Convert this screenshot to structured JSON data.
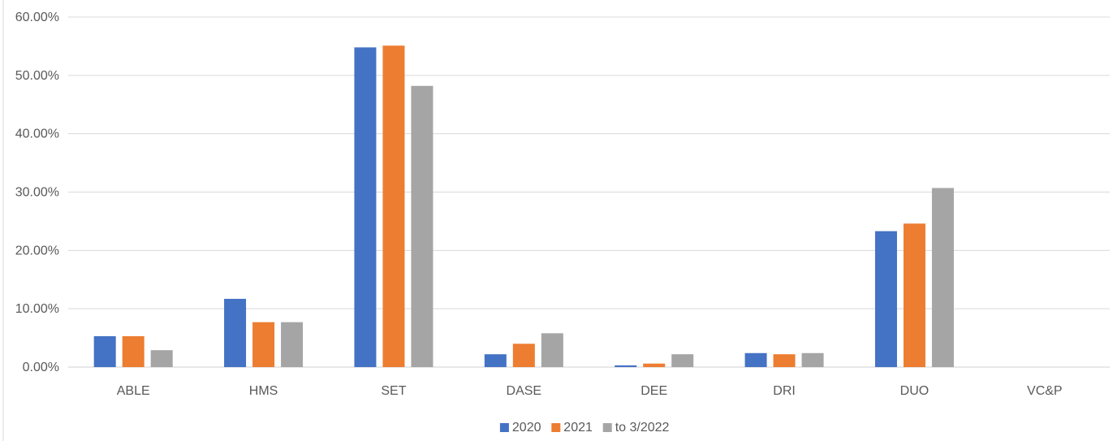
{
  "chart_data": {
    "type": "bar",
    "title": "",
    "xlabel": "",
    "ylabel": "",
    "categories": [
      "ABLE",
      "HMS",
      "SET",
      "DASE",
      "DEE",
      "DRI",
      "DUO",
      "VC&P"
    ],
    "series": [
      {
        "name": "2020",
        "color": "#4472C4",
        "values": [
          5.3,
          11.7,
          54.8,
          2.2,
          0.3,
          2.4,
          23.3,
          0
        ]
      },
      {
        "name": "2021",
        "color": "#ED7D31",
        "values": [
          5.3,
          7.7,
          55.1,
          4.0,
          0.6,
          2.2,
          24.6,
          0
        ]
      },
      {
        "name": "to 3/2022",
        "color": "#A5A5A5",
        "values": [
          2.9,
          7.7,
          48.2,
          5.8,
          2.2,
          2.4,
          30.7,
          0
        ]
      }
    ],
    "y_ticks": [
      "0.00%",
      "10.00%",
      "20.00%",
      "30.00%",
      "40.00%",
      "50.00%",
      "60.00%"
    ],
    "ylim": [
      0,
      60
    ],
    "grid": true,
    "legend_position": "bottom"
  }
}
